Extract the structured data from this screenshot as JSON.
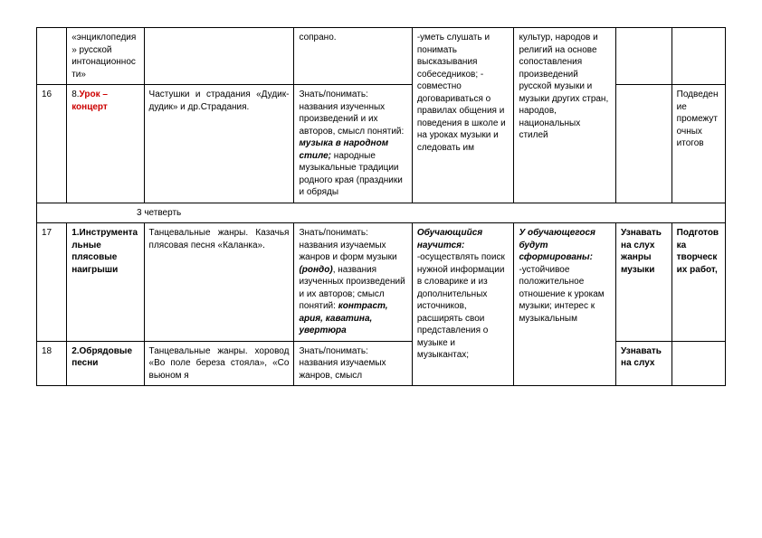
{
  "rows": {
    "r1": {
      "c2": "«энциклопедия» русской интонационности»",
      "c4": "сопрано.",
      "c5": "-уметь слушать и понимать высказывания собеседников;\n\n- совместно договариваться о правилах общения и поведения в школе и на уроках музыки и следовать им",
      "c6": "культур, народов и религий на основе сопоставления произведений русской музыки и музыки других стран, народов, национальных стилей"
    },
    "r2": {
      "num": "16",
      "c2_a": "8.",
      "c2_b": "Урок – концерт",
      "c3": "Частушки и страдания «Дудик-дудик» и др.Страдания.",
      "c4_a": "Знать/понимать: названия изученных произведений и их авторов, смысл понятий: ",
      "c4_b": "музыка в народном стиле;",
      "c4_c": " народные музыкальные традиции родного края (праздники и обряды",
      "c8": "Подведение промежуточных итогов"
    },
    "quarter": "3 четверть",
    "r3": {
      "num": "17",
      "c2": "1.Инструментальные плясовые наигрыши",
      "c3": "Танцевальные жанры. Казачья плясовая песня «Каланка».",
      "c4_a": "Знать/понимать: названия изучаемых жанров и форм музыки ",
      "c4_b": "(рондо)",
      "c4_c": ", названия изученных произведений и их авторов; смысл понятий: ",
      "c4_d": "контраст, ария, каватина, увертюра",
      "c5_a": "Обучающийся научится:",
      "c5_b": "\n\n-осуществлять поиск нужной информации в словарике и из дополнительных источников, расширять свои представления о музыке и музыкантах;",
      "c6_a": "У обучающегося будут сформированы:",
      "c6_b": "\n\n-устойчивое положительное отношение к урокам музыки; интерес к музыкальным",
      "c7": "Узнавать на слух жанры музыки",
      "c8": "Подготовка творческих работ,"
    },
    "r4": {
      "num": "18",
      "c2": "2.Обрядовые песни",
      "c3": "Танцевальные жанры. хоровод «Во поле береза стояла», «Со вьюном я",
      "c4": "Знать/понимать: названия изучаемых жанров, смысл",
      "c7": "Узнавать на слух"
    }
  }
}
